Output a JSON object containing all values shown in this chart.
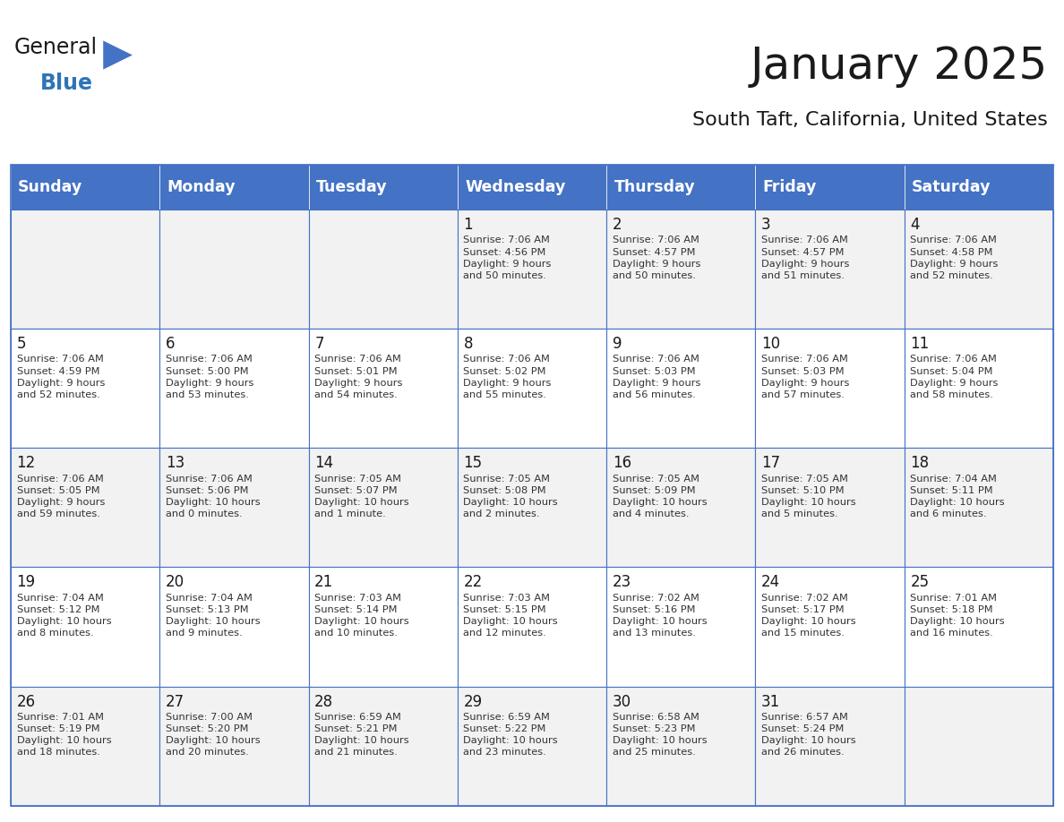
{
  "title": "January 2025",
  "subtitle": "South Taft, California, United States",
  "days_of_week": [
    "Sunday",
    "Monday",
    "Tuesday",
    "Wednesday",
    "Thursday",
    "Friday",
    "Saturday"
  ],
  "header_bg": "#4472C4",
  "header_text_color": "#FFFFFF",
  "cell_bg_odd": "#F2F2F2",
  "cell_bg_even": "#FFFFFF",
  "grid_line_color": "#4472C4",
  "title_color": "#1a1a1a",
  "subtitle_color": "#1a1a1a",
  "cell_text_color": "#333333",
  "day_number_color": "#1a1a1a",
  "calendar_data": [
    [
      {
        "day": "",
        "info": ""
      },
      {
        "day": "",
        "info": ""
      },
      {
        "day": "",
        "info": ""
      },
      {
        "day": "1",
        "info": "Sunrise: 7:06 AM\nSunset: 4:56 PM\nDaylight: 9 hours\nand 50 minutes."
      },
      {
        "day": "2",
        "info": "Sunrise: 7:06 AM\nSunset: 4:57 PM\nDaylight: 9 hours\nand 50 minutes."
      },
      {
        "day": "3",
        "info": "Sunrise: 7:06 AM\nSunset: 4:57 PM\nDaylight: 9 hours\nand 51 minutes."
      },
      {
        "day": "4",
        "info": "Sunrise: 7:06 AM\nSunset: 4:58 PM\nDaylight: 9 hours\nand 52 minutes."
      }
    ],
    [
      {
        "day": "5",
        "info": "Sunrise: 7:06 AM\nSunset: 4:59 PM\nDaylight: 9 hours\nand 52 minutes."
      },
      {
        "day": "6",
        "info": "Sunrise: 7:06 AM\nSunset: 5:00 PM\nDaylight: 9 hours\nand 53 minutes."
      },
      {
        "day": "7",
        "info": "Sunrise: 7:06 AM\nSunset: 5:01 PM\nDaylight: 9 hours\nand 54 minutes."
      },
      {
        "day": "8",
        "info": "Sunrise: 7:06 AM\nSunset: 5:02 PM\nDaylight: 9 hours\nand 55 minutes."
      },
      {
        "day": "9",
        "info": "Sunrise: 7:06 AM\nSunset: 5:03 PM\nDaylight: 9 hours\nand 56 minutes."
      },
      {
        "day": "10",
        "info": "Sunrise: 7:06 AM\nSunset: 5:03 PM\nDaylight: 9 hours\nand 57 minutes."
      },
      {
        "day": "11",
        "info": "Sunrise: 7:06 AM\nSunset: 5:04 PM\nDaylight: 9 hours\nand 58 minutes."
      }
    ],
    [
      {
        "day": "12",
        "info": "Sunrise: 7:06 AM\nSunset: 5:05 PM\nDaylight: 9 hours\nand 59 minutes."
      },
      {
        "day": "13",
        "info": "Sunrise: 7:06 AM\nSunset: 5:06 PM\nDaylight: 10 hours\nand 0 minutes."
      },
      {
        "day": "14",
        "info": "Sunrise: 7:05 AM\nSunset: 5:07 PM\nDaylight: 10 hours\nand 1 minute."
      },
      {
        "day": "15",
        "info": "Sunrise: 7:05 AM\nSunset: 5:08 PM\nDaylight: 10 hours\nand 2 minutes."
      },
      {
        "day": "16",
        "info": "Sunrise: 7:05 AM\nSunset: 5:09 PM\nDaylight: 10 hours\nand 4 minutes."
      },
      {
        "day": "17",
        "info": "Sunrise: 7:05 AM\nSunset: 5:10 PM\nDaylight: 10 hours\nand 5 minutes."
      },
      {
        "day": "18",
        "info": "Sunrise: 7:04 AM\nSunset: 5:11 PM\nDaylight: 10 hours\nand 6 minutes."
      }
    ],
    [
      {
        "day": "19",
        "info": "Sunrise: 7:04 AM\nSunset: 5:12 PM\nDaylight: 10 hours\nand 8 minutes."
      },
      {
        "day": "20",
        "info": "Sunrise: 7:04 AM\nSunset: 5:13 PM\nDaylight: 10 hours\nand 9 minutes."
      },
      {
        "day": "21",
        "info": "Sunrise: 7:03 AM\nSunset: 5:14 PM\nDaylight: 10 hours\nand 10 minutes."
      },
      {
        "day": "22",
        "info": "Sunrise: 7:03 AM\nSunset: 5:15 PM\nDaylight: 10 hours\nand 12 minutes."
      },
      {
        "day": "23",
        "info": "Sunrise: 7:02 AM\nSunset: 5:16 PM\nDaylight: 10 hours\nand 13 minutes."
      },
      {
        "day": "24",
        "info": "Sunrise: 7:02 AM\nSunset: 5:17 PM\nDaylight: 10 hours\nand 15 minutes."
      },
      {
        "day": "25",
        "info": "Sunrise: 7:01 AM\nSunset: 5:18 PM\nDaylight: 10 hours\nand 16 minutes."
      }
    ],
    [
      {
        "day": "26",
        "info": "Sunrise: 7:01 AM\nSunset: 5:19 PM\nDaylight: 10 hours\nand 18 minutes."
      },
      {
        "day": "27",
        "info": "Sunrise: 7:00 AM\nSunset: 5:20 PM\nDaylight: 10 hours\nand 20 minutes."
      },
      {
        "day": "28",
        "info": "Sunrise: 6:59 AM\nSunset: 5:21 PM\nDaylight: 10 hours\nand 21 minutes."
      },
      {
        "day": "29",
        "info": "Sunrise: 6:59 AM\nSunset: 5:22 PM\nDaylight: 10 hours\nand 23 minutes."
      },
      {
        "day": "30",
        "info": "Sunrise: 6:58 AM\nSunset: 5:23 PM\nDaylight: 10 hours\nand 25 minutes."
      },
      {
        "day": "31",
        "info": "Sunrise: 6:57 AM\nSunset: 5:24 PM\nDaylight: 10 hours\nand 26 minutes."
      },
      {
        "day": "",
        "info": ""
      }
    ]
  ]
}
